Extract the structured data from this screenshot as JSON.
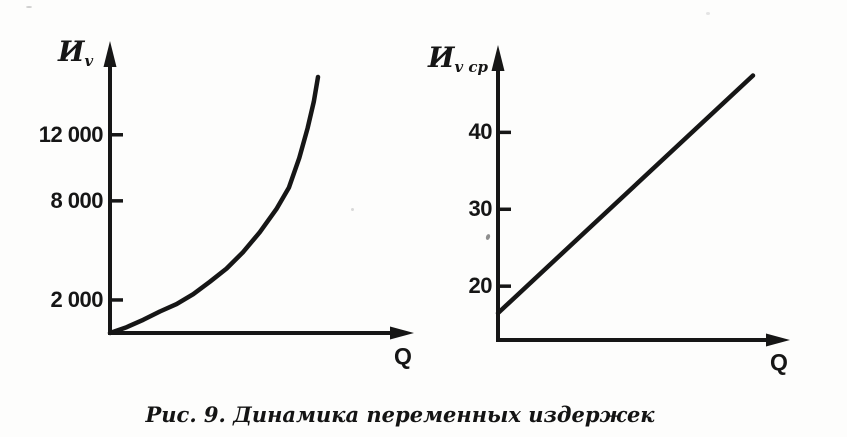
{
  "figure": {
    "caption": "Рис. 9. Динамика переменных издержек",
    "background": "#fdfdfc",
    "ink": "#161616"
  },
  "chart_data": [
    {
      "type": "line",
      "title": "",
      "ylabel": "Иv",
      "ylabel_main": "И",
      "ylabel_sub": "v",
      "xlabel": "Q",
      "grid": false,
      "legend": null,
      "xlim": [
        0,
        10
      ],
      "ylim": [
        0,
        15800
      ],
      "ytick_values": [
        2000,
        8000,
        12000
      ],
      "ytick_labels": [
        "2 000",
        "8 000",
        "12 000"
      ],
      "xtick_labels": [],
      "x": [
        0,
        0.8,
        1.6,
        2.4,
        3.2,
        4,
        4.8,
        5.6,
        6.4,
        7.2,
        8,
        8.6,
        9.1,
        9.5,
        9.8,
        10
      ],
      "y": [
        0,
        350,
        800,
        1300,
        1750,
        2350,
        3100,
        3900,
        4900,
        6100,
        7500,
        8800,
        10600,
        12400,
        14000,
        15500
      ]
    },
    {
      "type": "line",
      "title": "",
      "ylabel": "Иv ср",
      "ylabel_main": "И",
      "ylabel_sub": "v ср",
      "xlabel": "Q",
      "grid": false,
      "legend": null,
      "xlim": [
        0,
        10
      ],
      "ylim": [
        13,
        48.5
      ],
      "ytick_values": [
        20,
        30,
        40
      ],
      "ytick_labels": [
        "20",
        "30",
        "40"
      ],
      "xtick_labels": [],
      "x": [
        0,
        10
      ],
      "y": [
        16.5,
        47.4
      ]
    }
  ]
}
